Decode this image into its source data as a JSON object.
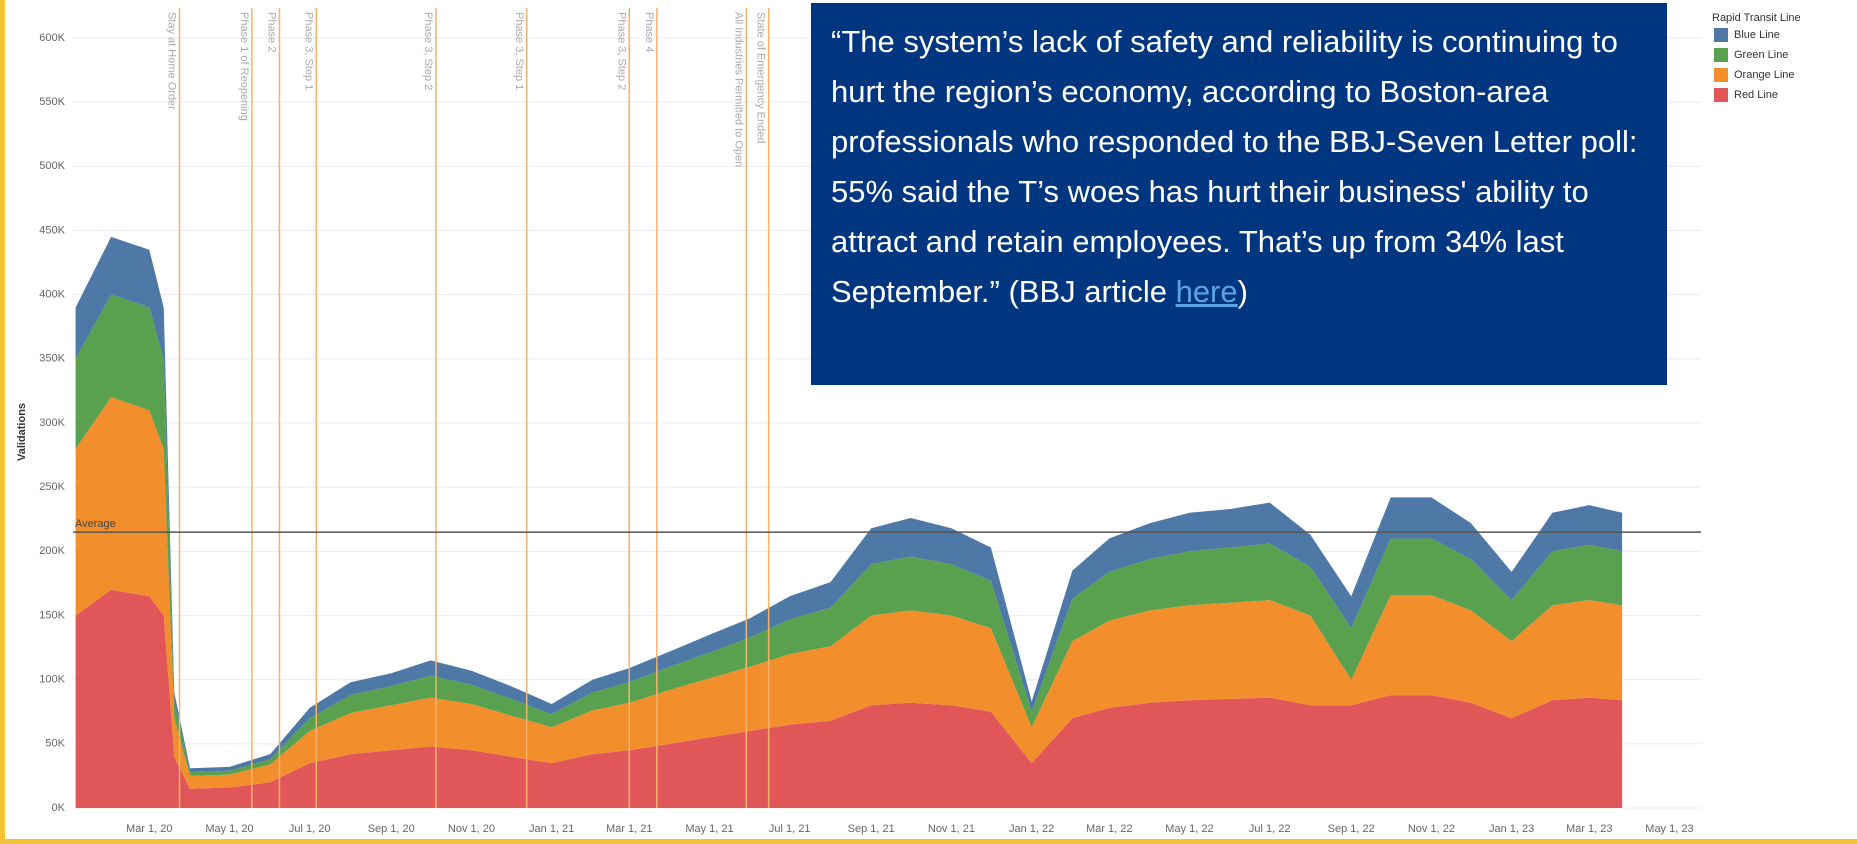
{
  "chart_data": {
    "type": "stacked_area",
    "y_label": "Validations",
    "legend_title": "Rapid Transit Line",
    "legend_position": "top-right",
    "grid": true,
    "xlim": [
      "2020-01-03",
      "2023-05-25"
    ],
    "xticks": [
      {
        "value": "2020-03-01",
        "label": "Mar 1, 20"
      },
      {
        "value": "2020-05-01",
        "label": "May 1, 20"
      },
      {
        "value": "2020-07-01",
        "label": "Jul 1, 20"
      },
      {
        "value": "2020-09-01",
        "label": "Sep 1, 20"
      },
      {
        "value": "2020-11-01",
        "label": "Nov 1, 20"
      },
      {
        "value": "2021-01-01",
        "label": "Jan 1, 21"
      },
      {
        "value": "2021-03-01",
        "label": "Mar 1, 21"
      },
      {
        "value": "2021-05-01",
        "label": "May 1, 21"
      },
      {
        "value": "2021-07-01",
        "label": "Jul 1, 21"
      },
      {
        "value": "2021-09-01",
        "label": "Sep 1, 21"
      },
      {
        "value": "2021-11-01",
        "label": "Nov 1, 21"
      },
      {
        "value": "2022-01-01",
        "label": "Jan 1, 22"
      },
      {
        "value": "2022-03-01",
        "label": "Mar 1, 22"
      },
      {
        "value": "2022-05-01",
        "label": "May 1, 22"
      },
      {
        "value": "2022-07-01",
        "label": "Jul 1, 22"
      },
      {
        "value": "2022-09-01",
        "label": "Sep 1, 22"
      },
      {
        "value": "2022-11-01",
        "label": "Nov 1, 22"
      },
      {
        "value": "2023-01-01",
        "label": "Jan 1, 23"
      },
      {
        "value": "2023-03-01",
        "label": "Mar 1, 23"
      },
      {
        "value": "2023-05-01",
        "label": "May 1, 23"
      }
    ],
    "ylim": [
      0,
      600000
    ],
    "yticks": [
      {
        "value": 0,
        "label": "0K"
      },
      {
        "value": 50000,
        "label": "50K"
      },
      {
        "value": 100000,
        "label": "100K"
      },
      {
        "value": 150000,
        "label": "150K"
      },
      {
        "value": 200000,
        "label": "200K"
      },
      {
        "value": 250000,
        "label": "250K"
      },
      {
        "value": 300000,
        "label": "300K"
      },
      {
        "value": 350000,
        "label": "350K"
      },
      {
        "value": 400000,
        "label": "400K"
      },
      {
        "value": 450000,
        "label": "450K"
      },
      {
        "value": 500000,
        "label": "500K"
      },
      {
        "value": 550000,
        "label": "550K"
      },
      {
        "value": 600000,
        "label": "600K"
      }
    ],
    "x": [
      "2020-01-05",
      "2020-02-01",
      "2020-03-01",
      "2020-03-12",
      "2020-03-20",
      "2020-04-01",
      "2020-05-01",
      "2020-06-01",
      "2020-07-01",
      "2020-08-01",
      "2020-09-01",
      "2020-10-01",
      "2020-11-01",
      "2020-12-01",
      "2021-01-01",
      "2021-02-01",
      "2021-03-01",
      "2021-04-01",
      "2021-05-01",
      "2021-06-01",
      "2021-07-01",
      "2021-08-01",
      "2021-09-01",
      "2021-10-01",
      "2021-11-01",
      "2021-12-01",
      "2022-01-01",
      "2022-02-01",
      "2022-03-01",
      "2022-04-01",
      "2022-05-01",
      "2022-06-01",
      "2022-07-01",
      "2022-08-01",
      "2022-09-01",
      "2022-10-01",
      "2022-11-01",
      "2022-12-01",
      "2023-01-01",
      "2023-02-01",
      "2023-03-01",
      "2023-03-26"
    ],
    "series": [
      {
        "name": "Blue Line",
        "color": "#4e79a7",
        "values": [
          40000,
          45000,
          45000,
          40000,
          8000,
          3000,
          3000,
          4000,
          8000,
          10000,
          10000,
          12000,
          11000,
          10000,
          8000,
          10000,
          11000,
          12000,
          14000,
          15000,
          18000,
          20000,
          28000,
          30000,
          28000,
          26000,
          8000,
          22000,
          26000,
          28000,
          30000,
          30000,
          32000,
          25000,
          25000,
          32000,
          32000,
          28000,
          22000,
          30000,
          31000,
          30000
        ]
      },
      {
        "name": "Green Line",
        "color": "#59a14f",
        "values": [
          70000,
          80000,
          80000,
          70000,
          12000,
          3000,
          3000,
          4000,
          10000,
          14000,
          15000,
          17000,
          15000,
          13000,
          10000,
          14000,
          16000,
          18000,
          20000,
          23000,
          27000,
          30000,
          40000,
          42000,
          40000,
          37000,
          12000,
          33000,
          38000,
          40000,
          42000,
          43000,
          44000,
          38000,
          40000,
          44000,
          44000,
          40000,
          32000,
          42000,
          43000,
          42000
        ]
      },
      {
        "name": "Orange Line",
        "color": "#f28e2b",
        "values": [
          130000,
          150000,
          145000,
          130000,
          30000,
          10000,
          10000,
          14000,
          25000,
          32000,
          35000,
          38000,
          36000,
          32000,
          28000,
          34000,
          37000,
          42000,
          46000,
          50000,
          55000,
          58000,
          70000,
          72000,
          70000,
          65000,
          28000,
          60000,
          68000,
          72000,
          74000,
          75000,
          76000,
          70000,
          20000,
          78000,
          78000,
          72000,
          60000,
          74000,
          76000,
          74000
        ]
      },
      {
        "name": "Red Line",
        "color": "#e15759",
        "values": [
          150000,
          170000,
          165000,
          150000,
          40000,
          15000,
          16000,
          20000,
          35000,
          42000,
          45000,
          48000,
          45000,
          40000,
          35000,
          42000,
          45000,
          50000,
          55000,
          60000,
          65000,
          68000,
          80000,
          82000,
          80000,
          75000,
          35000,
          70000,
          78000,
          82000,
          84000,
          85000,
          86000,
          80000,
          80000,
          88000,
          88000,
          82000,
          70000,
          84000,
          86000,
          84000
        ]
      }
    ],
    "average": {
      "value": 215000,
      "label": "Average"
    },
    "events_color": "#f5b26b",
    "events": [
      {
        "date": "2020-03-24",
        "label": "Stay at Home Order"
      },
      {
        "date": "2020-05-18",
        "label": "Phase 1 of Reopening"
      },
      {
        "date": "2020-06-08",
        "label": "Phase 2"
      },
      {
        "date": "2020-07-06",
        "label": "Phase 3, Step 1"
      },
      {
        "date": "2020-10-05",
        "label": "Phase 3, Step 2"
      },
      {
        "date": "2020-12-13",
        "label": "Phase 3, Step 1"
      },
      {
        "date": "2021-03-01",
        "label": "Phase 3, Step 2"
      },
      {
        "date": "2021-03-22",
        "label": "Phase 4"
      },
      {
        "date": "2021-05-29",
        "label": "All Industries Permitted to Open"
      },
      {
        "date": "2021-06-15",
        "label": "State of Emergency Ended"
      }
    ],
    "annotation": {
      "text": "“The system’s lack of safety and reliability is continuing to hurt the region’s economy, according to Boston-area professionals who responded to the BBJ-Seven Letter poll: 55% said the T’s woes has hurt their business' ability to attract and retain employees. That’s up from 34% last September.” (BBJ article ",
      "link": "here",
      "end": ")"
    }
  }
}
